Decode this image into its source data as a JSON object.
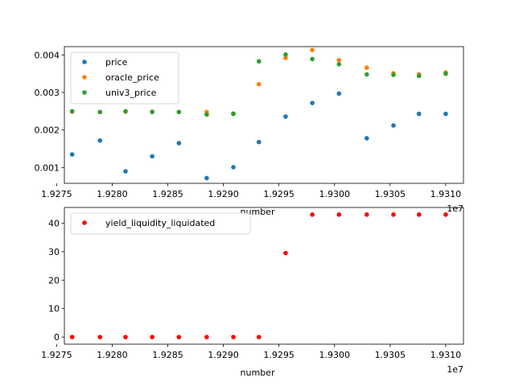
{
  "chart_data": [
    {
      "type": "scatter",
      "xlabel": "number",
      "x_offset_label": "1e7",
      "xlim": [
        19275700,
        19311600
      ],
      "ylim": [
        0.00058,
        0.00422
      ],
      "x_ticks": [
        19275000,
        19280000,
        19285000,
        19290000,
        19295000,
        19300000,
        19305000,
        19310000
      ],
      "x_tick_labels": [
        "1.9275",
        "1.9280",
        "1.9285",
        "1.9290",
        "1.9295",
        "1.9300",
        "1.9305",
        "1.9310"
      ],
      "y_ticks": [
        0.001,
        0.002,
        0.003,
        0.004
      ],
      "y_tick_labels": [
        "0.001",
        "0.002",
        "0.003",
        "0.004"
      ],
      "legend_position": "top-left",
      "x": [
        19276400,
        19278900,
        19281200,
        19283600,
        19286000,
        19288500,
        19290900,
        19293200,
        19295600,
        19298000,
        19300400,
        19302900,
        19305300,
        19307600,
        19310000
      ],
      "series": [
        {
          "name": "price",
          "color": "#1f77b4",
          "values": [
            0.00135,
            0.00172,
            0.0009,
            0.0013,
            0.00165,
            0.00072,
            0.00101,
            0.00168,
            0.00236,
            0.00272,
            0.00297,
            0.00178,
            0.00212,
            0.00243,
            0.00243
          ]
        },
        {
          "name": "oracle_price",
          "color": "#ff7f0e",
          "values": [
            0.00249,
            0.00248,
            0.00249,
            0.00249,
            0.00248,
            0.00248,
            0.00244,
            0.00322,
            0.00392,
            0.00413,
            0.00386,
            0.00366,
            0.00351,
            0.00348,
            0.00353
          ]
        },
        {
          "name": "univ3_price",
          "color": "#2ca02c",
          "values": [
            0.0025,
            0.00248,
            0.0025,
            0.00248,
            0.00248,
            0.00241,
            0.00243,
            0.00383,
            0.00401,
            0.00389,
            0.00375,
            0.00348,
            0.00347,
            0.00344,
            0.0035
          ]
        }
      ]
    },
    {
      "type": "scatter",
      "xlabel": "number",
      "x_offset_label": "1e7",
      "xlim": [
        19275700,
        19311600
      ],
      "ylim": [
        -2.5,
        45.5
      ],
      "x_ticks": [
        19275000,
        19280000,
        19285000,
        19290000,
        19295000,
        19300000,
        19305000,
        19310000
      ],
      "x_tick_labels": [
        "1.9275",
        "1.9280",
        "1.9285",
        "1.9290",
        "1.9295",
        "1.9300",
        "1.9305",
        "1.9310"
      ],
      "y_ticks": [
        0,
        10,
        20,
        30,
        40
      ],
      "y_tick_labels": [
        "0",
        "10",
        "20",
        "30",
        "40"
      ],
      "legend_position": "top-left",
      "x": [
        19276400,
        19278900,
        19281200,
        19283600,
        19286000,
        19288500,
        19290900,
        19293200,
        19295600,
        19298000,
        19300400,
        19302900,
        19305300,
        19307600,
        19310000
      ],
      "series": [
        {
          "name": "yield_liquidity_liquidated",
          "color": "#ff0000",
          "values": [
            0,
            0,
            0,
            0,
            0,
            0,
            0,
            0,
            29.5,
            43,
            43,
            43,
            43,
            43,
            43
          ]
        }
      ]
    }
  ]
}
